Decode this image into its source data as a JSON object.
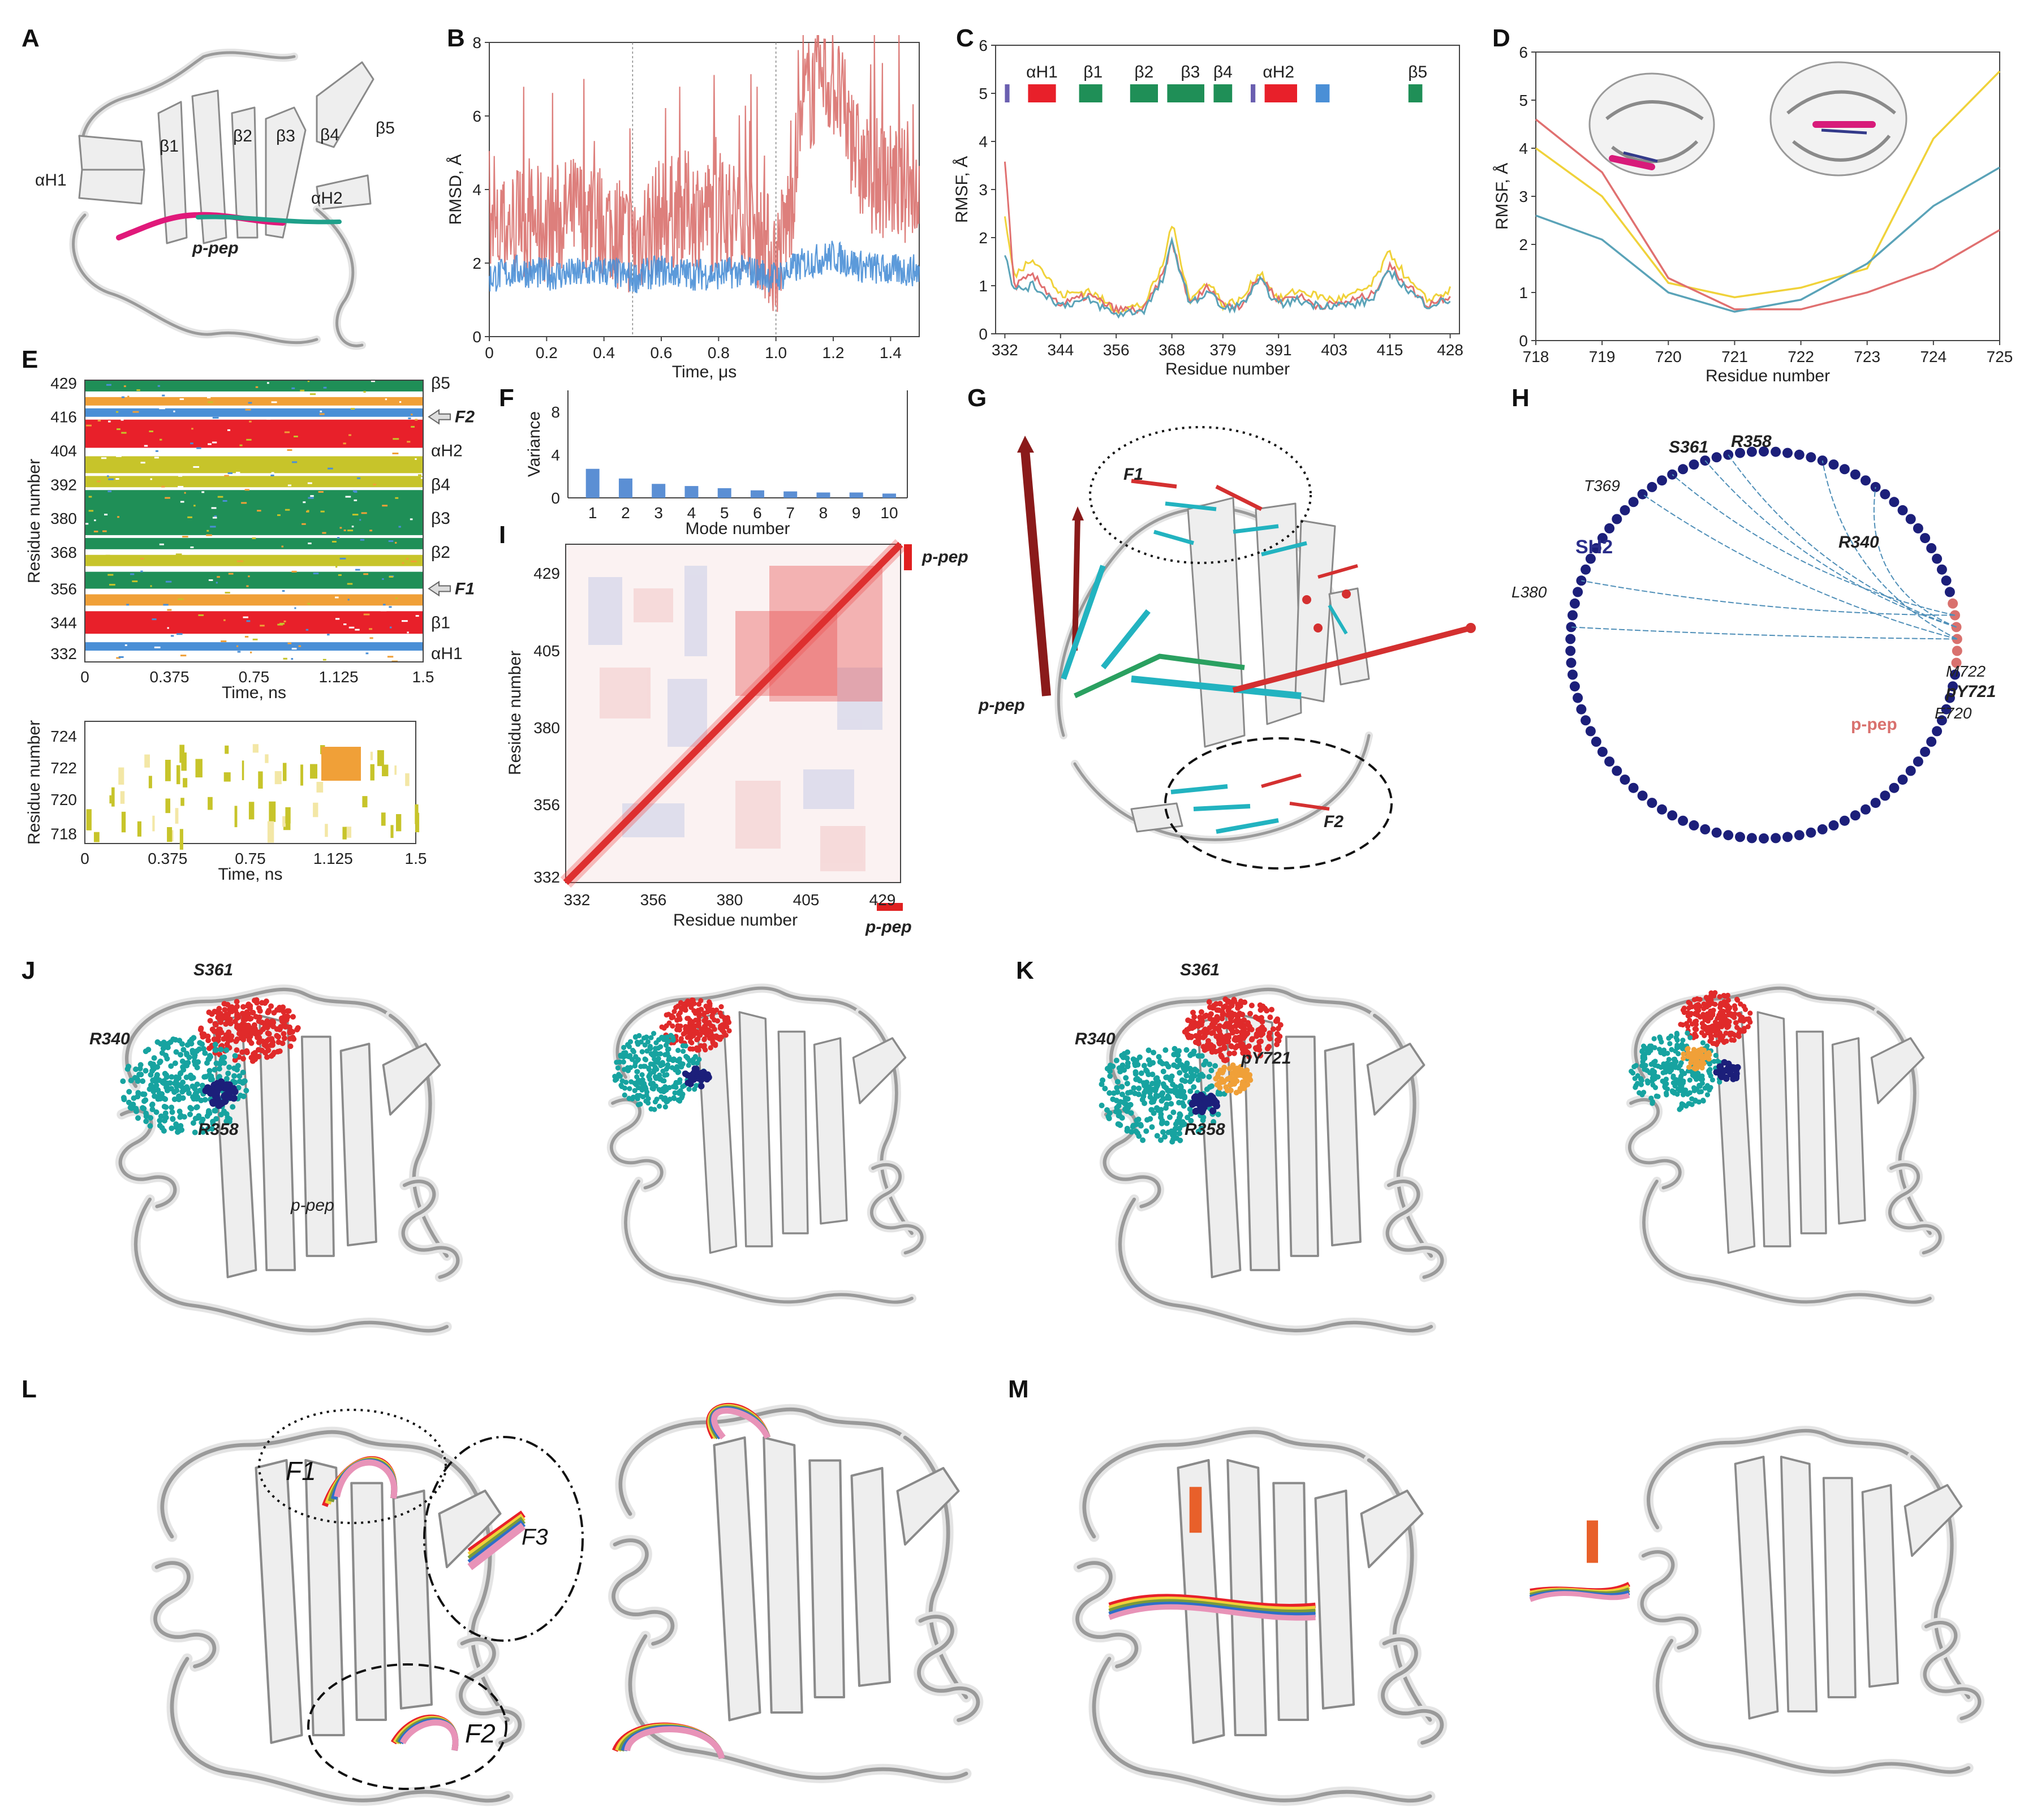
{
  "panels": {
    "A": {
      "label": "A",
      "ss_labels": [
        "αH1",
        "β1",
        "β2",
        "β3",
        "β4",
        "β5",
        "αH2"
      ],
      "peptide_label": "p-pep"
    },
    "B": {
      "label": "B",
      "ylabel": "RMSD, Å",
      "xlabel": "Time, μs",
      "xticks": [
        "0",
        "0.2",
        "0.4",
        "0.6",
        "0.8",
        "1.0",
        "1.2",
        "1.4"
      ],
      "yticks": [
        "0",
        "2",
        "4",
        "6",
        "8"
      ]
    },
    "C": {
      "label": "C",
      "ylabel": "RMSF, Å",
      "xlabel": "Residue number",
      "xticks": [
        "332",
        "344",
        "356",
        "368",
        "379",
        "391",
        "403",
        "415",
        "428"
      ],
      "yticks": [
        "0",
        "1",
        "2",
        "3",
        "4",
        "5",
        "6"
      ],
      "ss_labels": [
        "αH1",
        "β1",
        "β2",
        "β3",
        "β4",
        "αH2",
        "β5"
      ]
    },
    "D": {
      "label": "D",
      "ylabel": "RMSF, Å",
      "xlabel": "Residue number",
      "xticks": [
        "718",
        "719",
        "720",
        "721",
        "722",
        "723",
        "724",
        "725"
      ],
      "yticks": [
        "0",
        "1",
        "2",
        "3",
        "4",
        "5",
        "6"
      ]
    },
    "E": {
      "label": "E",
      "ylabel": "Residue number",
      "xlabel": "Time, ns",
      "xticks": [
        "0",
        "0.375",
        "0.75",
        "1.125",
        "1.5"
      ],
      "yticks": [
        "429",
        "416",
        "404",
        "392",
        "380",
        "368",
        "356",
        "344",
        "332"
      ],
      "ss_labels": [
        "β5",
        "F2",
        "αH2",
        "β4",
        "β3",
        "β2",
        "F1",
        "β1",
        "αH1"
      ],
      "lower_yticks": [
        "724",
        "722",
        "720",
        "718"
      ],
      "lower_ylabel": "Residue number",
      "lower_xlabel": "Time, ns"
    },
    "F": {
      "label": "F",
      "ylabel": "Variance",
      "xlabel": "Mode number",
      "xticks": [
        "1",
        "2",
        "3",
        "4",
        "5",
        "6",
        "7",
        "8",
        "9",
        "10"
      ],
      "yticks": [
        "0",
        "4",
        "8"
      ]
    },
    "G": {
      "label": "G",
      "F1": "F1",
      "F2": "F2",
      "peptide_label": "p-pep"
    },
    "H": {
      "label": "H",
      "domain_label": "SH2",
      "peptide_label": "p-pep",
      "residues": [
        "S361",
        "R358",
        "T369",
        "R340",
        "L380",
        "M722",
        "pY721",
        "E720"
      ]
    },
    "I": {
      "label": "I",
      "ylabel": "Residue number",
      "xlabel": "Residue number",
      "xticks": [
        "332",
        "356",
        "380",
        "405",
        "429"
      ],
      "yticks": [
        "429",
        "405",
        "380",
        "356",
        "332"
      ],
      "peptide_label": "p-pep"
    },
    "J": {
      "label": "J",
      "residues": [
        "S361",
        "R340",
        "R358"
      ],
      "peptide_label": "p-pep"
    },
    "K": {
      "label": "K",
      "residues": [
        "S361",
        "R340",
        "pY721",
        "R358"
      ]
    },
    "L": {
      "label": "L",
      "regions": [
        "F1",
        "F3",
        "F2"
      ]
    },
    "M": {
      "label": "M"
    }
  },
  "chart_data": [
    {
      "type": "line",
      "panel": "B",
      "xlabel": "Time, μs",
      "ylabel": "RMSD, Å",
      "xlim": [
        0,
        1.5
      ],
      "ylim": [
        0,
        8
      ],
      "series": [
        {
          "color": "#d9716e",
          "x": [
            0,
            0.1,
            0.2,
            0.3,
            0.4,
            0.5,
            0.6,
            0.7,
            0.8,
            0.9,
            1.0,
            1.05,
            1.1,
            1.2,
            1.3,
            1.4,
            1.5
          ],
          "y": [
            2.5,
            3.2,
            3.0,
            3.4,
            3.1,
            2.6,
            3.3,
            3.5,
            3.2,
            3.4,
            2.0,
            3.5,
            6.5,
            7.0,
            4.5,
            4.2,
            4.0
          ]
        },
        {
          "color": "#4a8fd6",
          "x": [
            0,
            0.1,
            0.2,
            0.3,
            0.4,
            0.5,
            0.6,
            0.7,
            0.8,
            0.9,
            1.0,
            1.1,
            1.2,
            1.3,
            1.4,
            1.5
          ],
          "y": [
            1.6,
            1.8,
            1.7,
            1.7,
            1.8,
            1.6,
            1.8,
            1.7,
            1.7,
            1.8,
            1.6,
            2.0,
            2.2,
            1.9,
            1.8,
            1.8
          ]
        }
      ]
    },
    {
      "type": "line",
      "panel": "C",
      "xlabel": "Residue number",
      "ylabel": "RMSF, Å",
      "xlim": [
        330,
        430
      ],
      "ylim": [
        0,
        6
      ],
      "series": [
        {
          "color": "#f0d23a",
          "x": [
            332,
            334,
            338,
            344,
            350,
            356,
            362,
            366,
            368,
            372,
            376,
            379,
            383,
            387,
            391,
            395,
            399,
            403,
            407,
            411,
            415,
            419,
            423,
            428
          ],
          "y": [
            2.4,
            1.2,
            1.6,
            0.8,
            0.9,
            0.5,
            0.6,
            1.4,
            2.3,
            0.7,
            1.1,
            0.6,
            0.7,
            1.3,
            0.7,
            0.9,
            0.8,
            0.7,
            0.8,
            1.0,
            1.7,
            1.1,
            0.7,
            0.9
          ]
        },
        {
          "color": "#e07070",
          "x": [
            332,
            334,
            338,
            344,
            350,
            356,
            362,
            366,
            368,
            372,
            376,
            379,
            383,
            387,
            391,
            395,
            399,
            403,
            407,
            411,
            415,
            419,
            423,
            428
          ],
          "y": [
            3.6,
            1.0,
            1.2,
            0.6,
            0.8,
            0.5,
            0.5,
            1.2,
            1.9,
            0.6,
            1.0,
            0.6,
            0.6,
            1.2,
            0.7,
            0.8,
            0.6,
            0.6,
            0.7,
            0.8,
            1.4,
            1.0,
            0.6,
            0.8
          ]
        },
        {
          "color": "#5aa3b8",
          "x": [
            332,
            334,
            338,
            344,
            350,
            356,
            362,
            366,
            368,
            372,
            376,
            379,
            383,
            387,
            391,
            395,
            399,
            403,
            407,
            411,
            415,
            419,
            423,
            428
          ],
          "y": [
            1.7,
            0.9,
            1.0,
            0.6,
            0.7,
            0.4,
            0.5,
            1.1,
            1.9,
            0.6,
            0.9,
            0.5,
            0.6,
            1.1,
            0.6,
            0.7,
            0.6,
            0.6,
            0.6,
            0.7,
            1.3,
            0.9,
            0.6,
            0.7
          ]
        }
      ]
    },
    {
      "type": "line",
      "panel": "D",
      "xlabel": "Residue number",
      "ylabel": "RMSF, Å",
      "xlim": [
        718,
        725
      ],
      "ylim": [
        0,
        6
      ],
      "series": [
        {
          "color": "#f0d23a",
          "x": [
            718,
            719,
            720,
            721,
            722,
            723,
            724,
            725
          ],
          "y": [
            4.0,
            3.0,
            1.2,
            0.9,
            1.1,
            1.5,
            4.2,
            5.6
          ]
        },
        {
          "color": "#e07070",
          "x": [
            718,
            719,
            720,
            721,
            722,
            723,
            724,
            725
          ],
          "y": [
            4.6,
            3.5,
            1.3,
            0.65,
            0.65,
            1.0,
            1.5,
            2.3
          ]
        },
        {
          "color": "#5aa3b8",
          "x": [
            718,
            719,
            720,
            721,
            722,
            723,
            724,
            725
          ],
          "y": [
            2.6,
            2.1,
            1.0,
            0.6,
            0.85,
            1.6,
            2.8,
            3.6
          ]
        }
      ]
    },
    {
      "type": "bar",
      "panel": "F",
      "xlabel": "Mode number",
      "ylabel": "Variance",
      "categories": [
        "1",
        "2",
        "3",
        "4",
        "5",
        "6",
        "7",
        "8",
        "9",
        "10"
      ],
      "values": [
        2.7,
        1.8,
        1.3,
        1.1,
        0.9,
        0.7,
        0.6,
        0.5,
        0.5,
        0.4
      ],
      "ylim": [
        0,
        10
      ]
    }
  ],
  "colors": {
    "red": "#e8202a",
    "green": "#1f8f57",
    "blue": "#4a8fd6",
    "salmon": "#d9716e",
    "navy": "#1c1f7a",
    "cyan": "#22b3c0",
    "orange": "#f0a038",
    "yellow": "#f0d23a"
  }
}
